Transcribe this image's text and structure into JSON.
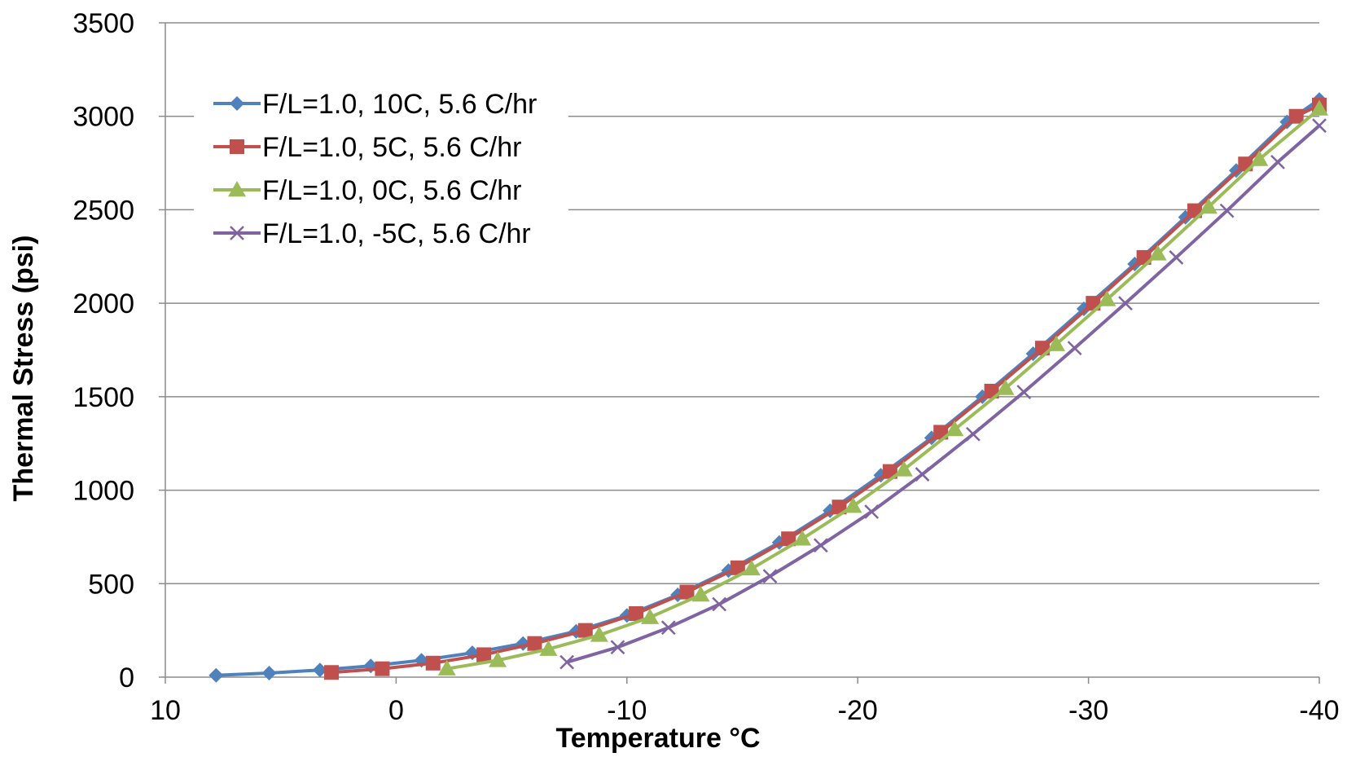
{
  "chart_data": {
    "type": "line",
    "title": "",
    "xlabel": "Temperature °C",
    "ylabel": "Thermal Stress (psi)",
    "xlim": [
      10,
      -40
    ],
    "ylim": [
      0,
      3500
    ],
    "x_ticks": [
      "10",
      "0",
      "-10",
      "-20",
      "-30",
      "-40"
    ],
    "y_ticks": [
      "0",
      "500",
      "1000",
      "1500",
      "2000",
      "2500",
      "3000",
      "3500"
    ],
    "grid": "horizontal",
    "legend_position": "top-left",
    "series": [
      {
        "name": "F/L=1.0, 10C, 5.6 C/hr",
        "color": "#4F81BD",
        "marker": "diamond",
        "x": [
          7.8,
          5.5,
          3.3,
          1.1,
          -1.1,
          -3.3,
          -5.5,
          -7.8,
          -10.0,
          -12.2,
          -14.4,
          -16.6,
          -18.8,
          -21.0,
          -23.2,
          -25.4,
          -27.6,
          -29.8,
          -32.0,
          -34.2,
          -36.4,
          -38.6,
          -40.0
        ],
        "y": [
          10,
          22,
          38,
          60,
          90,
          130,
          180,
          245,
          330,
          440,
          570,
          720,
          890,
          1080,
          1280,
          1500,
          1730,
          1970,
          2210,
          2460,
          2710,
          2970,
          3090
        ]
      },
      {
        "name": "F/L=1.0, 5C, 5.6 C/hr",
        "color": "#C0504D",
        "marker": "square",
        "x": [
          2.8,
          0.6,
          -1.6,
          -3.8,
          -6.0,
          -8.2,
          -10.4,
          -12.6,
          -14.8,
          -17.0,
          -19.2,
          -21.4,
          -23.6,
          -25.8,
          -28.0,
          -30.2,
          -32.4,
          -34.6,
          -36.8,
          -39.0,
          -40.0
        ],
        "y": [
          25,
          45,
          75,
          120,
          180,
          250,
          340,
          455,
          585,
          740,
          910,
          1100,
          1310,
          1530,
          1760,
          2000,
          2245,
          2495,
          2745,
          3000,
          3060
        ]
      },
      {
        "name": "F/L=1.0, 0C, 5.6 C/hr",
        "color": "#9BBB59",
        "marker": "triangle",
        "x": [
          -2.2,
          -4.4,
          -6.6,
          -8.8,
          -11.0,
          -13.2,
          -15.4,
          -17.6,
          -19.8,
          -22.0,
          -24.2,
          -26.4,
          -28.6,
          -30.8,
          -33.0,
          -35.2,
          -37.4,
          -40.0
        ],
        "y": [
          45,
          90,
          150,
          225,
          320,
          440,
          580,
          740,
          915,
          1110,
          1325,
          1545,
          1780,
          2020,
          2265,
          2515,
          2770,
          3040
        ]
      },
      {
        "name": "F/L=1.0, -5C, 5.6 C/hr",
        "color": "#8064A2",
        "marker": "x",
        "x": [
          -7.4,
          -9.6,
          -11.8,
          -14.0,
          -16.2,
          -18.4,
          -20.6,
          -22.8,
          -25.0,
          -27.2,
          -29.4,
          -31.6,
          -33.8,
          -36.0,
          -38.2,
          -40.0
        ],
        "y": [
          80,
          160,
          265,
          390,
          540,
          705,
          885,
          1085,
          1300,
          1525,
          1760,
          2000,
          2245,
          2495,
          2755,
          2950
        ]
      }
    ]
  }
}
